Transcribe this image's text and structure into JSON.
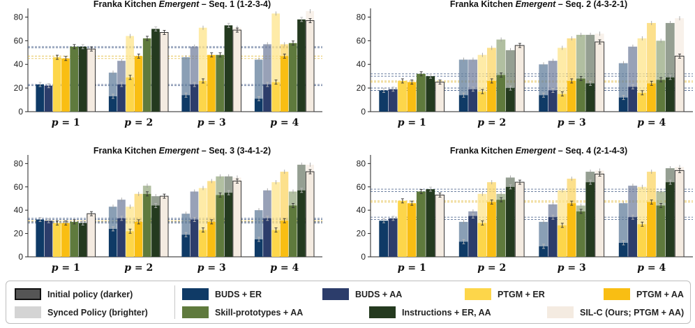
{
  "colors": {
    "BUDS + ER": "#0f3a66",
    "BUDS + AA": "#2c3d6b",
    "PTGM + ER": "#fdd64a",
    "PTGM + AA": "#f9be13",
    "Skill-prototypes + AA": "#5f7a3d",
    "Instructions + ER, AA": "#243a1f",
    "SIL-C (Ours; PTGM + AA)": "#f4ebe1",
    "reference_line_buds": "#2f4a7a",
    "reference_line_ptgm": "#e0b52a"
  },
  "legend": {
    "initial": "Initial policy (darker)",
    "synced": "Synced Policy (brighter)",
    "items": [
      "BUDS + ER",
      "BUDS + AA",
      "PTGM + ER",
      "PTGM + AA",
      "Skill-prototypes + AA",
      "Instructions + ER, AA",
      "SIL-C (Ours; PTGM + AA)"
    ]
  },
  "chart_data": [
    {
      "type": "bar",
      "title_prefix": "Franka Kitchen ",
      "title_emph": "Emergent",
      "title_suffix": " – Seq. 1 (1-2-3-4)",
      "categories": [
        "p = 1",
        "p = 2",
        "p = 3",
        "p = 4"
      ],
      "ylim": [
        0,
        85
      ],
      "yticks": [
        0,
        20,
        40,
        60,
        80
      ],
      "reference_lines": [
        55,
        54,
        47,
        45,
        23,
        22
      ],
      "series": [
        {
          "name": "BUDS + ER",
          "initial": [
            23,
            13,
            14,
            11
          ],
          "synced": [
            23,
            33,
            46,
            44
          ]
        },
        {
          "name": "BUDS + AA",
          "initial": [
            22,
            23,
            23,
            23
          ],
          "synced": [
            22,
            43,
            55,
            57
          ]
        },
        {
          "name": "PTGM + ER",
          "initial": [
            46,
            29,
            26,
            25
          ],
          "synced": [
            46,
            64,
            71,
            83
          ]
        },
        {
          "name": "PTGM + AA",
          "initial": [
            45,
            47,
            48,
            47
          ],
          "synced": [
            45,
            47,
            48,
            57
          ]
        },
        {
          "name": "Skill-prototypes + AA",
          "initial": [
            55,
            62,
            48,
            58
          ],
          "synced": [
            55,
            62,
            48,
            58
          ]
        },
        {
          "name": "Instructions + ER, AA",
          "initial": [
            55,
            70,
            73,
            78
          ],
          "synced": [
            55,
            70,
            73,
            78
          ]
        },
        {
          "name": "SIL-C (Ours; PTGM + AA)",
          "initial": [
            53,
            67,
            69,
            77
          ],
          "synced": [
            53,
            67,
            71,
            85
          ]
        }
      ]
    },
    {
      "type": "bar",
      "title_prefix": "Franka Kitchen ",
      "title_emph": "Emergent",
      "title_suffix": " – Seq. 2 (4-3-2-1)",
      "categories": [
        "p = 1",
        "p = 2",
        "p = 3",
        "p = 4"
      ],
      "ylim": [
        0,
        85
      ],
      "yticks": [
        0,
        20,
        40,
        60,
        80
      ],
      "reference_lines": [
        32,
        30,
        26,
        25,
        20,
        18
      ],
      "series": [
        {
          "name": "BUDS + ER",
          "initial": [
            18,
            14,
            14,
            12
          ],
          "synced": [
            18,
            44,
            40,
            41
          ]
        },
        {
          "name": "BUDS + AA",
          "initial": [
            19,
            19,
            18,
            21
          ],
          "synced": [
            19,
            44,
            43,
            55
          ]
        },
        {
          "name": "PTGM + ER",
          "initial": [
            26,
            17,
            15,
            16
          ],
          "synced": [
            26,
            48,
            54,
            62
          ]
        },
        {
          "name": "PTGM + AA",
          "initial": [
            25,
            26,
            26,
            24
          ],
          "synced": [
            25,
            54,
            62,
            75
          ]
        },
        {
          "name": "Skill-prototypes + AA",
          "initial": [
            32,
            31,
            28,
            27
          ],
          "synced": [
            32,
            61,
            65,
            60
          ]
        },
        {
          "name": "Instructions + ER, AA",
          "initial": [
            30,
            20,
            24,
            29
          ],
          "synced": [
            30,
            52,
            65,
            75
          ]
        },
        {
          "name": "SIL-C (Ours; PTGM + AA)",
          "initial": [
            25,
            56,
            59,
            47
          ],
          "synced": [
            25,
            56,
            66,
            79
          ]
        }
      ]
    },
    {
      "type": "bar",
      "title_prefix": "Franka Kitchen ",
      "title_emph": "Emergent",
      "title_suffix": " – Seq. 3 (3-4-1-2)",
      "categories": [
        "p = 1",
        "p = 2",
        "p = 3",
        "p = 4"
      ],
      "ylim": [
        0,
        85
      ],
      "yticks": [
        0,
        20,
        40,
        60,
        80
      ],
      "reference_lines": [
        33,
        32,
        31,
        30,
        30,
        29
      ],
      "series": [
        {
          "name": "BUDS + ER",
          "initial": [
            32,
            24,
            19,
            15
          ],
          "synced": [
            32,
            43,
            37,
            40
          ]
        },
        {
          "name": "BUDS + AA",
          "initial": [
            31,
            33,
            32,
            33
          ],
          "synced": [
            31,
            49,
            56,
            57
          ]
        },
        {
          "name": "PTGM + ER",
          "initial": [
            29,
            22,
            23,
            23
          ],
          "synced": [
            29,
            43,
            59,
            64
          ]
        },
        {
          "name": "PTGM + AA",
          "initial": [
            29,
            30,
            30,
            31
          ],
          "synced": [
            29,
            54,
            65,
            73
          ]
        },
        {
          "name": "Skill-prototypes + AA",
          "initial": [
            30,
            54,
            53,
            44
          ],
          "synced": [
            30,
            61,
            69,
            56
          ]
        },
        {
          "name": "Instructions + ER, AA",
          "initial": [
            29,
            44,
            55,
            57
          ],
          "synced": [
            29,
            52,
            69,
            79
          ]
        },
        {
          "name": "SIL-C (Ours; PTGM + AA)",
          "initial": [
            37,
            52,
            65,
            73
          ],
          "synced": [
            37,
            52,
            68,
            79
          ]
        }
      ]
    },
    {
      "type": "bar",
      "title_prefix": "Franka Kitchen ",
      "title_emph": "Emergent",
      "title_suffix": " – Seq. 4 (2-1-4-3)",
      "categories": [
        "p = 1",
        "p = 2",
        "p = 3",
        "p = 4"
      ],
      "ylim": [
        0,
        85
      ],
      "yticks": [
        0,
        20,
        40,
        60,
        80
      ],
      "reference_lines": [
        58,
        56,
        48,
        47,
        34,
        32
      ],
      "series": [
        {
          "name": "BUDS + ER",
          "initial": [
            31,
            13,
            9,
            12
          ],
          "synced": [
            31,
            30,
            30,
            46
          ]
        },
        {
          "name": "BUDS + AA",
          "initial": [
            33,
            35,
            34,
            34
          ],
          "synced": [
            33,
            39,
            45,
            61
          ]
        },
        {
          "name": "PTGM + ER",
          "initial": [
            48,
            29,
            27,
            28
          ],
          "synced": [
            48,
            54,
            57,
            60
          ]
        },
        {
          "name": "PTGM + AA",
          "initial": [
            46,
            47,
            46,
            47
          ],
          "synced": [
            46,
            64,
            67,
            73
          ]
        },
        {
          "name": "Skill-prototypes + AA",
          "initial": [
            56,
            49,
            39,
            44
          ],
          "synced": [
            56,
            54,
            44,
            56
          ]
        },
        {
          "name": "Instructions + ER, AA",
          "initial": [
            58,
            60,
            64,
            64
          ],
          "synced": [
            58,
            68,
            73,
            76
          ]
        },
        {
          "name": "SIL-C (Ours; PTGM + AA)",
          "initial": [
            53,
            64,
            71,
            74
          ],
          "synced": [
            53,
            64,
            74,
            77
          ]
        }
      ]
    }
  ]
}
